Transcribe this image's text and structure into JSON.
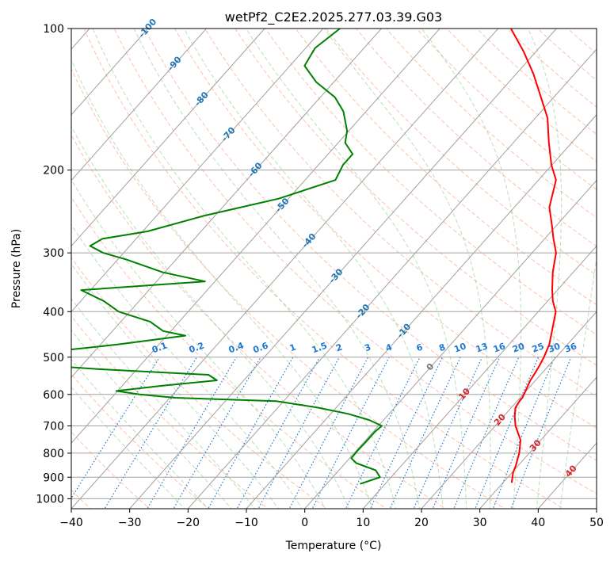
{
  "chart_data": {
    "type": "line",
    "chart_kind": "skew-T log-P diagram",
    "title": "wetPf2_C2E2.2025.277.03.39.G03",
    "xlabel": "Temperature (°C)",
    "ylabel": "Pressure (hPa)",
    "xlim": [
      -40,
      50
    ],
    "ylim": [
      1050,
      100
    ],
    "x_ticks": [
      "−40",
      "−30",
      "−20",
      "−10",
      "0",
      "10",
      "20",
      "30",
      "40",
      "50"
    ],
    "x_tick_values": [
      -40,
      -30,
      -20,
      -10,
      0,
      10,
      20,
      30,
      40,
      50
    ],
    "y_ticks": [
      "100",
      "200",
      "300",
      "400",
      "500",
      "600",
      "700",
      "800",
      "900",
      "1000"
    ],
    "y_tick_values": [
      100,
      200,
      300,
      400,
      500,
      600,
      700,
      800,
      900,
      1000
    ],
    "grid": true,
    "colors": {
      "temperature": "#ff0000",
      "dewpoint": "#008000",
      "isotherm": "#a0a0a0",
      "dry_adiabat": "#ff8c69",
      "moist_adiabat": "#66bb66",
      "mixing_ratio": "#1e78d2",
      "isotherm_label": "#1f77b4",
      "saturated_label": "#d62728",
      "zero_label": "#777777",
      "line_dark": "#c8a882"
    },
    "isotherm_labels": [
      "-100",
      "-90",
      "-80",
      "-70",
      "-60",
      "-50",
      "-40",
      "-30",
      "-20",
      "-10",
      "0",
      "10",
      "20",
      "30",
      "40"
    ],
    "mixing_ratio_labels": [
      "0.1",
      "0.2",
      "0.4",
      "0.6",
      "1",
      "1.5",
      "2",
      "3",
      "4",
      "6",
      "8",
      "10",
      "13",
      "16",
      "20",
      "25",
      "30",
      "36"
    ],
    "series": [
      {
        "name": "Temperature",
        "p": [
          925,
          900,
          880,
          850,
          800,
          750,
          700,
          670,
          640,
          620,
          610,
          590,
          575,
          560,
          540,
          520,
          500,
          470,
          440,
          400,
          380,
          360,
          330,
          300,
          280,
          260,
          240,
          210,
          195,
          175,
          155,
          140,
          125,
          112,
          100
        ],
        "t": [
          31.5,
          30.8,
          30.2,
          29.6,
          28.3,
          26.5,
          23.5,
          22.0,
          20.7,
          20.4,
          20.4,
          19.9,
          19.5,
          19.1,
          18.8,
          18.4,
          17.9,
          16.9,
          15.3,
          13.0,
          10.9,
          9.1,
          6.5,
          4.1,
          1.5,
          -1.1,
          -4.0,
          -7.0,
          -10.1,
          -13.9,
          -17.9,
          -22.2,
          -27.0,
          -32.1,
          -37.8
        ]
      },
      {
        "name": "Dewpoint",
        "p": [
          930,
          915,
          900,
          870,
          840,
          820,
          790,
          760,
          720,
          700,
          680,
          660,
          640,
          620,
          610,
          600,
          590,
          575,
          560,
          545,
          530,
          520,
          510,
          470,
          450,
          440,
          420,
          400,
          380,
          360,
          345,
          330,
          310,
          300,
          290,
          280,
          270,
          250,
          230,
          210,
          195,
          185,
          175,
          165,
          150,
          140,
          130,
          120,
          110,
          100
        ],
        "td": [
          5.7,
          6.9,
          8.1,
          6.3,
          1.9,
          0.3,
          0.2,
          0.3,
          0.3,
          0.6,
          -2.5,
          -7.0,
          -13.2,
          -21.3,
          -39.1,
          -45.7,
          -50.2,
          -43.1,
          -34.6,
          -36.9,
          -56.8,
          -67.1,
          -81.4,
          -57.1,
          -46.8,
          -51.3,
          -55.0,
          -61.9,
          -66.0,
          -71.6,
          -51.7,
          -60.3,
          -68.5,
          -73.5,
          -76.8,
          -75.8,
          -69.2,
          -61.8,
          -51.7,
          -44.8,
          -45.8,
          -45.8,
          -48.8,
          -50.3,
          -53.9,
          -57.5,
          -63.0,
          -67.5,
          -68.4,
          -67.1
        ]
      }
    ]
  }
}
